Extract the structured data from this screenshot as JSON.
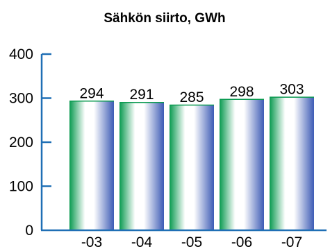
{
  "chart_data": {
    "type": "bar",
    "title": "Sähkön siirto, GWh",
    "categories": [
      "-03",
      "-04",
      "-05",
      "-06",
      "-07"
    ],
    "values": [
      294,
      291,
      285,
      298,
      303
    ],
    "data_labels": [
      "294",
      "291",
      "285",
      "298",
      "303"
    ],
    "ylim": [
      0,
      400
    ],
    "yticks": [
      0,
      100,
      200,
      300,
      400
    ],
    "ytick_labels": [
      "0",
      "100",
      "200",
      "300",
      "400"
    ],
    "xlabel": "",
    "ylabel": "",
    "grid": false,
    "legend": "none",
    "bar_colors": {
      "edge_left": "#0a9a50",
      "highlight": "#ffffff",
      "edge_right": "#3d5bb5"
    },
    "axis_color": "#1f6fb5"
  }
}
